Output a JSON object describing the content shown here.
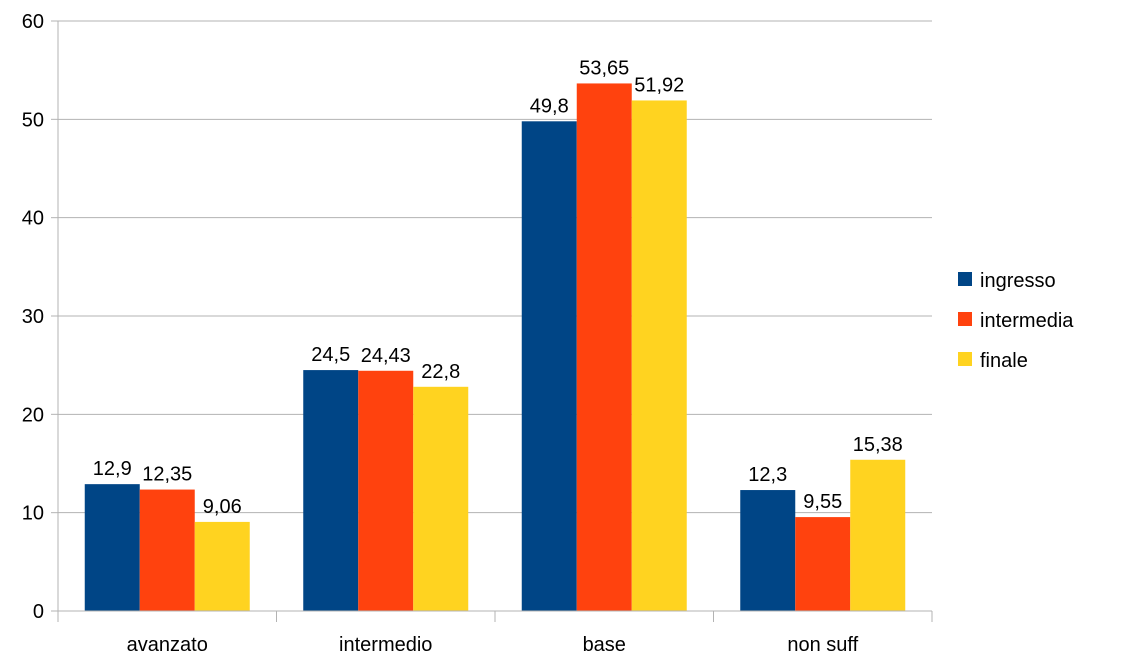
{
  "chart_data": {
    "type": "bar",
    "categories": [
      "avanzato",
      "intermedio",
      "base",
      "non suff"
    ],
    "series": [
      {
        "name": "ingresso",
        "values": [
          12.9,
          24.5,
          49.8,
          12.3
        ],
        "labels": [
          "12,9",
          "24,5",
          "49,8",
          "12,3"
        ],
        "color": "#004586"
      },
      {
        "name": "intermedia",
        "values": [
          12.35,
          24.43,
          53.65,
          9.55
        ],
        "labels": [
          "12,35",
          "24,43",
          "53,65",
          "9,55"
        ],
        "color": "#ff420e"
      },
      {
        "name": "finale",
        "values": [
          9.06,
          22.8,
          51.92,
          15.38
        ],
        "labels": [
          "9,06",
          "22,8",
          "51,92",
          "15,38"
        ],
        "color": "#ffd320"
      }
    ],
    "ylim": [
      0,
      60
    ],
    "yticks": [
      0,
      10,
      20,
      30,
      40,
      50,
      60
    ],
    "grid": true,
    "legend_position": "right",
    "gridline_color": "#b3b3b3"
  }
}
